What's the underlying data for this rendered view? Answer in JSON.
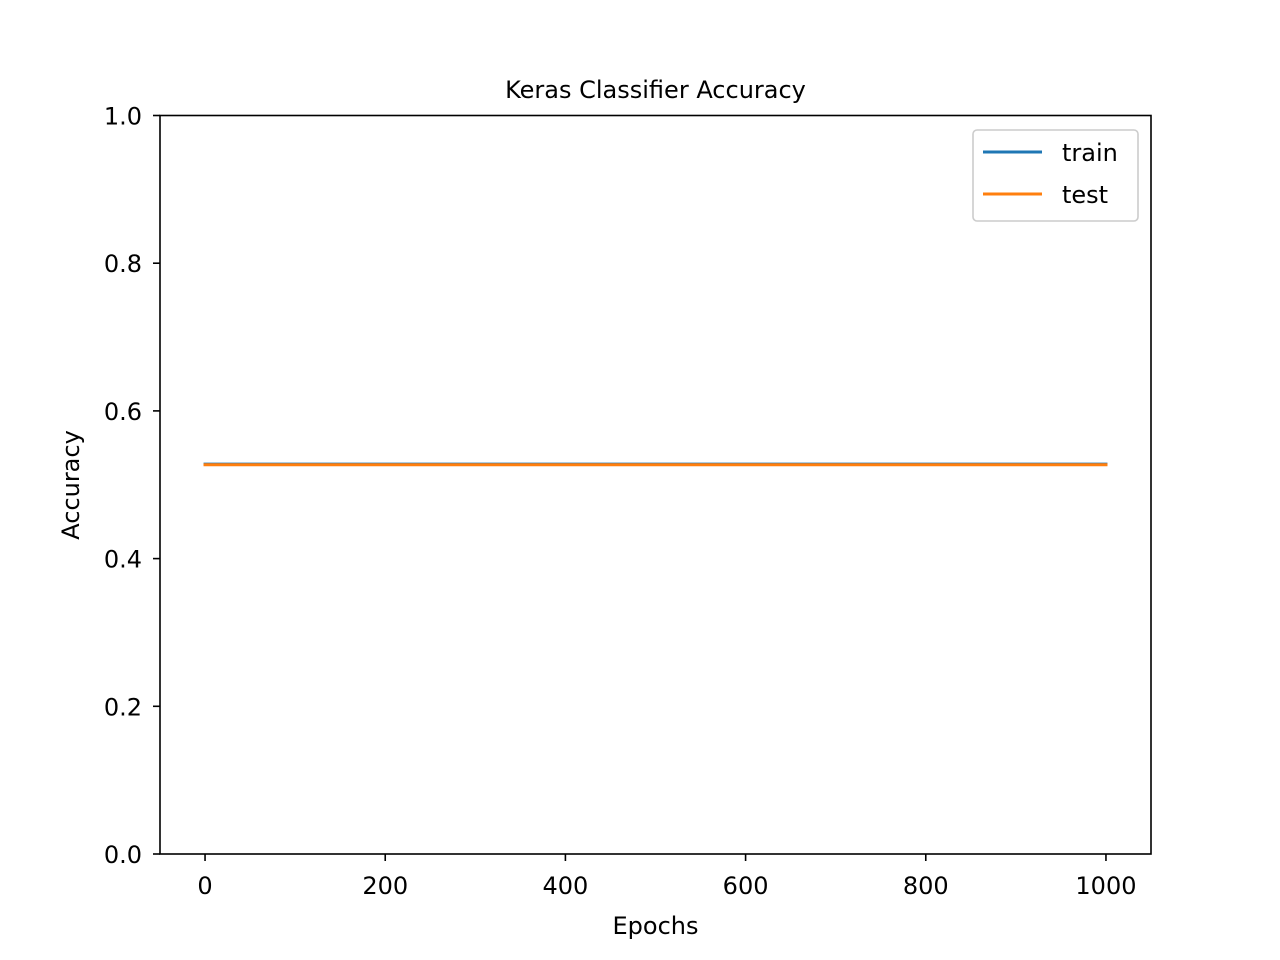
{
  "chart_data": {
    "type": "line",
    "title": "Keras Classifier Accuracy",
    "xlabel": "Epochs",
    "ylabel": "Accuracy",
    "xlim": [
      -50,
      1050
    ],
    "ylim": [
      0.0,
      1.0
    ],
    "xticks": [
      0,
      200,
      400,
      600,
      800,
      1000
    ],
    "xtick_labels": [
      "0",
      "200",
      "400",
      "600",
      "800",
      "1000"
    ],
    "yticks": [
      0.0,
      0.2,
      0.4,
      0.6,
      0.8,
      1.0
    ],
    "ytick_labels": [
      "0.0",
      "0.2",
      "0.4",
      "0.6",
      "0.8",
      "1.0"
    ],
    "grid": false,
    "legend_position": "top-right",
    "series": [
      {
        "name": "train",
        "color": "#1f77b4",
        "x": [
          0,
          1000
        ],
        "y": [
          0.528,
          0.528
        ]
      },
      {
        "name": "test",
        "color": "#ff7f0e",
        "x": [
          0,
          1000
        ],
        "y": [
          0.527,
          0.527
        ]
      }
    ]
  }
}
